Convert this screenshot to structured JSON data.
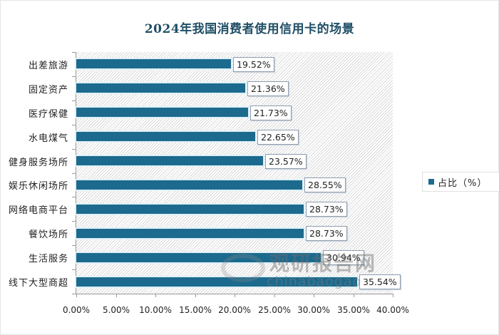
{
  "chart_data": {
    "type": "bar",
    "orientation": "horizontal",
    "title": "2024年我国消费者使用信用卡的场景",
    "xlabel": "",
    "ylabel": "",
    "xlim": [
      0,
      40
    ],
    "x_ticks": [
      "0.00%",
      "5.00%",
      "10.00%",
      "15.00%",
      "20.00%",
      "25.00%",
      "30.00%",
      "35.00%",
      "40.00%"
    ],
    "categories": [
      "出差旅游",
      "固定资产",
      "医疗保健",
      "水电煤气",
      "健身服务场所",
      "娱乐休闲场所",
      "网络电商平台",
      "餐饮场所",
      "生活服务",
      "线下大型商超"
    ],
    "series": [
      {
        "name": "占比（%）",
        "color": "#1c6a8e",
        "values": [
          19.52,
          21.36,
          21.73,
          22.65,
          23.57,
          28.55,
          28.73,
          28.73,
          30.94,
          35.54
        ]
      }
    ],
    "data_labels": [
      "19.52%",
      "21.36%",
      "21.73%",
      "22.65%",
      "23.57%",
      "28.55%",
      "28.73%",
      "28.73%",
      "30.94%",
      "35.54%"
    ],
    "legend": {
      "position": "right",
      "entries": [
        "占比（%）"
      ]
    },
    "grid": false,
    "plot_background": "diagonal-hatch"
  },
  "watermark": {
    "cn": "观研报告网",
    "en": "chinabaogao"
  }
}
